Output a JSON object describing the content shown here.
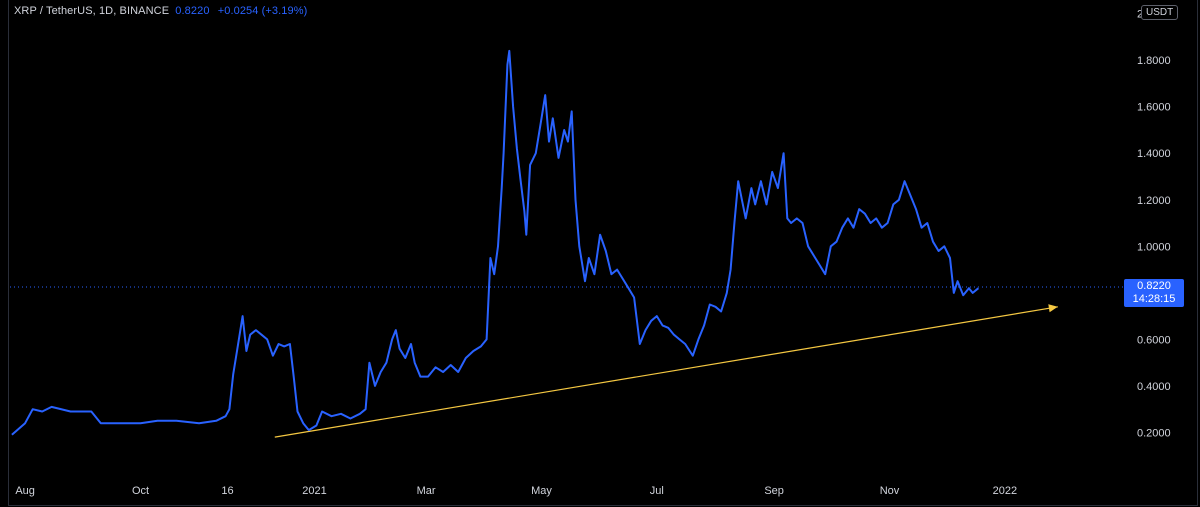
{
  "legend": {
    "symbol": "XRP / TetherUS, 1D, BINANCE",
    "price": "0.8220",
    "change": "+0.0254 (+3.19%)"
  },
  "price_axis": {
    "unit": "USDT",
    "current_price": "0.8220",
    "countdown": "14:28:15"
  },
  "colors": {
    "background": "#000000",
    "line": "#2962ff",
    "trendline": "#f5c842",
    "axis_text": "#d1d4dc",
    "price_tag": "#2962ff"
  },
  "chart_data": {
    "type": "line",
    "title": "",
    "xlabel": "",
    "ylabel": "",
    "x_ticks": [
      "Aug",
      "Oct",
      "16",
      "2021",
      "Mar",
      "May",
      "Jul",
      "Sep",
      "Nov",
      "2022"
    ],
    "y_ticks": [
      "0.2000",
      "0.4000",
      "0.6000",
      "0.8000",
      "1.0000",
      "1.2000",
      "1.4000",
      "1.6000",
      "1.8000",
      "2.0000"
    ],
    "ylim": [
      0.0,
      2.05
    ],
    "xlim": [
      "2020-07-24",
      "2022-03-05"
    ],
    "grid": false,
    "series": [
      {
        "values": [
          [
            "2020-07-25",
            0.19
          ],
          [
            "2020-08-01",
            0.24
          ],
          [
            "2020-08-05",
            0.3
          ],
          [
            "2020-08-10",
            0.29
          ],
          [
            "2020-08-15",
            0.31
          ],
          [
            "2020-08-25",
            0.29
          ],
          [
            "2020-09-05",
            0.29
          ],
          [
            "2020-09-10",
            0.24
          ],
          [
            "2020-09-20",
            0.24
          ],
          [
            "2020-10-01",
            0.24
          ],
          [
            "2020-10-10",
            0.25
          ],
          [
            "2020-10-20",
            0.25
          ],
          [
            "2020-11-01",
            0.24
          ],
          [
            "2020-11-10",
            0.25
          ],
          [
            "2020-11-15",
            0.27
          ],
          [
            "2020-11-17",
            0.3
          ],
          [
            "2020-11-19",
            0.45
          ],
          [
            "2020-11-21",
            0.55
          ],
          [
            "2020-11-24",
            0.7
          ],
          [
            "2020-11-26",
            0.55
          ],
          [
            "2020-11-28",
            0.62
          ],
          [
            "2020-12-01",
            0.64
          ],
          [
            "2020-12-04",
            0.62
          ],
          [
            "2020-12-07",
            0.6
          ],
          [
            "2020-12-10",
            0.53
          ],
          [
            "2020-12-13",
            0.58
          ],
          [
            "2020-12-16",
            0.57
          ],
          [
            "2020-12-19",
            0.58
          ],
          [
            "2020-12-21",
            0.44
          ],
          [
            "2020-12-23",
            0.29
          ],
          [
            "2020-12-26",
            0.24
          ],
          [
            "2020-12-29",
            0.21
          ],
          [
            "2021-01-02",
            0.23
          ],
          [
            "2021-01-05",
            0.29
          ],
          [
            "2021-01-10",
            0.27
          ],
          [
            "2021-01-15",
            0.28
          ],
          [
            "2021-01-20",
            0.26
          ],
          [
            "2021-01-25",
            0.28
          ],
          [
            "2021-01-28",
            0.3
          ],
          [
            "2021-01-30",
            0.5
          ],
          [
            "2021-02-02",
            0.4
          ],
          [
            "2021-02-05",
            0.46
          ],
          [
            "2021-02-08",
            0.5
          ],
          [
            "2021-02-11",
            0.6
          ],
          [
            "2021-02-13",
            0.64
          ],
          [
            "2021-02-15",
            0.56
          ],
          [
            "2021-02-18",
            0.52
          ],
          [
            "2021-02-21",
            0.58
          ],
          [
            "2021-02-23",
            0.5
          ],
          [
            "2021-02-26",
            0.44
          ],
          [
            "2021-03-02",
            0.44
          ],
          [
            "2021-03-06",
            0.48
          ],
          [
            "2021-03-10",
            0.46
          ],
          [
            "2021-03-14",
            0.49
          ],
          [
            "2021-03-18",
            0.46
          ],
          [
            "2021-03-22",
            0.52
          ],
          [
            "2021-03-26",
            0.55
          ],
          [
            "2021-03-30",
            0.57
          ],
          [
            "2021-04-02",
            0.6
          ],
          [
            "2021-04-04",
            0.95
          ],
          [
            "2021-04-06",
            0.88
          ],
          [
            "2021-04-08",
            1.0
          ],
          [
            "2021-04-10",
            1.25
          ],
          [
            "2021-04-11",
            1.4
          ],
          [
            "2021-04-13",
            1.78
          ],
          [
            "2021-04-14",
            1.84
          ],
          [
            "2021-04-16",
            1.6
          ],
          [
            "2021-04-18",
            1.42
          ],
          [
            "2021-04-20",
            1.28
          ],
          [
            "2021-04-22",
            1.15
          ],
          [
            "2021-04-23",
            1.05
          ],
          [
            "2021-04-25",
            1.35
          ],
          [
            "2021-04-28",
            1.4
          ],
          [
            "2021-05-01",
            1.55
          ],
          [
            "2021-05-03",
            1.65
          ],
          [
            "2021-05-05",
            1.45
          ],
          [
            "2021-05-07",
            1.55
          ],
          [
            "2021-05-10",
            1.38
          ],
          [
            "2021-05-13",
            1.5
          ],
          [
            "2021-05-15",
            1.45
          ],
          [
            "2021-05-17",
            1.58
          ],
          [
            "2021-05-19",
            1.2
          ],
          [
            "2021-05-21",
            1.0
          ],
          [
            "2021-05-24",
            0.85
          ],
          [
            "2021-05-26",
            0.95
          ],
          [
            "2021-05-29",
            0.88
          ],
          [
            "2021-06-01",
            1.05
          ],
          [
            "2021-06-04",
            0.98
          ],
          [
            "2021-06-07",
            0.88
          ],
          [
            "2021-06-10",
            0.9
          ],
          [
            "2021-06-13",
            0.86
          ],
          [
            "2021-06-16",
            0.82
          ],
          [
            "2021-06-19",
            0.78
          ],
          [
            "2021-06-22",
            0.58
          ],
          [
            "2021-06-25",
            0.64
          ],
          [
            "2021-06-28",
            0.68
          ],
          [
            "2021-07-01",
            0.7
          ],
          [
            "2021-07-04",
            0.66
          ],
          [
            "2021-07-07",
            0.65
          ],
          [
            "2021-07-10",
            0.62
          ],
          [
            "2021-07-13",
            0.6
          ],
          [
            "2021-07-16",
            0.58
          ],
          [
            "2021-07-20",
            0.53
          ],
          [
            "2021-07-23",
            0.6
          ],
          [
            "2021-07-26",
            0.66
          ],
          [
            "2021-07-29",
            0.75
          ],
          [
            "2021-08-01",
            0.74
          ],
          [
            "2021-08-04",
            0.72
          ],
          [
            "2021-08-07",
            0.8
          ],
          [
            "2021-08-09",
            0.9
          ],
          [
            "2021-08-11",
            1.1
          ],
          [
            "2021-08-13",
            1.28
          ],
          [
            "2021-08-15",
            1.2
          ],
          [
            "2021-08-17",
            1.12
          ],
          [
            "2021-08-20",
            1.25
          ],
          [
            "2021-08-22",
            1.18
          ],
          [
            "2021-08-25",
            1.28
          ],
          [
            "2021-08-28",
            1.18
          ],
          [
            "2021-08-31",
            1.32
          ],
          [
            "2021-09-03",
            1.25
          ],
          [
            "2021-09-06",
            1.4
          ],
          [
            "2021-09-08",
            1.12
          ],
          [
            "2021-09-10",
            1.1
          ],
          [
            "2021-09-13",
            1.12
          ],
          [
            "2021-09-16",
            1.1
          ],
          [
            "2021-09-19",
            1.0
          ],
          [
            "2021-09-22",
            0.96
          ],
          [
            "2021-09-25",
            0.92
          ],
          [
            "2021-09-28",
            0.88
          ],
          [
            "2021-10-01",
            1.0
          ],
          [
            "2021-10-04",
            1.02
          ],
          [
            "2021-10-07",
            1.08
          ],
          [
            "2021-10-10",
            1.12
          ],
          [
            "2021-10-13",
            1.08
          ],
          [
            "2021-10-16",
            1.16
          ],
          [
            "2021-10-19",
            1.14
          ],
          [
            "2021-10-22",
            1.1
          ],
          [
            "2021-10-25",
            1.12
          ],
          [
            "2021-10-28",
            1.08
          ],
          [
            "2021-10-31",
            1.1
          ],
          [
            "2021-11-03",
            1.18
          ],
          [
            "2021-11-06",
            1.2
          ],
          [
            "2021-11-09",
            1.28
          ],
          [
            "2021-11-12",
            1.22
          ],
          [
            "2021-11-15",
            1.16
          ],
          [
            "2021-11-18",
            1.08
          ],
          [
            "2021-11-21",
            1.1
          ],
          [
            "2021-11-24",
            1.02
          ],
          [
            "2021-11-27",
            0.98
          ],
          [
            "2021-11-30",
            1.0
          ],
          [
            "2021-12-03",
            0.95
          ],
          [
            "2021-12-05",
            0.8
          ],
          [
            "2021-12-07",
            0.85
          ],
          [
            "2021-12-10",
            0.79
          ],
          [
            "2021-12-13",
            0.82
          ],
          [
            "2021-12-15",
            0.8
          ],
          [
            "2021-12-18",
            0.82
          ]
        ]
      }
    ],
    "trendline": {
      "start": [
        "2020-12-11",
        0.18
      ],
      "end": [
        "2022-01-29",
        0.74
      ]
    }
  }
}
